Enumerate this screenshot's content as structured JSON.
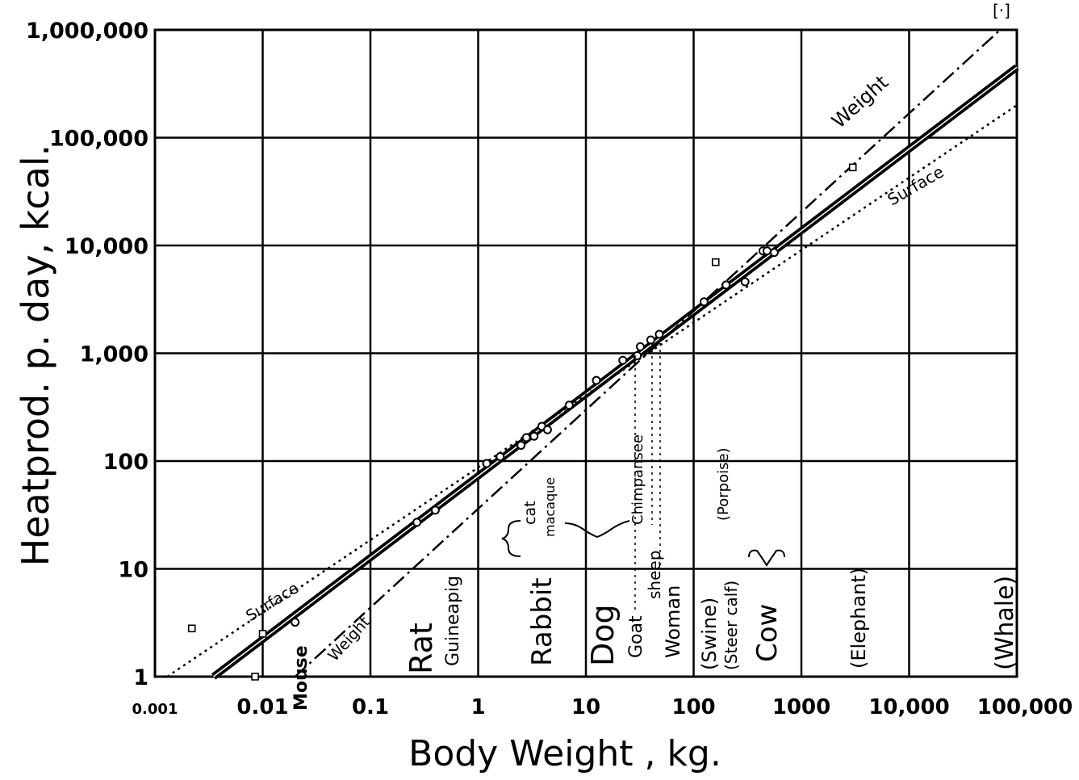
{
  "chart_data": {
    "type": "line",
    "title": "",
    "xlabel": "Body Weight , kg.",
    "ylabel": "Heatprod. p. day, kcal.",
    "x_scale": "log",
    "y_scale": "log",
    "xlim": [
      0.001,
      100000
    ],
    "ylim": [
      1,
      1000000
    ],
    "grid": true,
    "x_tick_labels": [
      "0.001",
      "0.01",
      "0.1",
      "1",
      "10",
      "100",
      "1000",
      "10,000",
      "100,000"
    ],
    "y_tick_labels": [
      "1",
      "10",
      "100",
      "1,000",
      "10,000",
      "100,000",
      "1,000,000"
    ],
    "corner_mark": "[·]",
    "series": [
      {
        "name": "",
        "style": "solid-heavy",
        "x": [
          0.0035,
          100000
        ],
        "y": [
          1,
          450000
        ]
      },
      {
        "name": "Surface",
        "style": "dotted",
        "x": [
          0.0013,
          100000
        ],
        "y": [
          1,
          200000
        ]
      },
      {
        "name": "Weight",
        "style": "dash-dot",
        "x": [
          0.02,
          70000
        ],
        "y": [
          1,
          1000000
        ]
      }
    ],
    "points": [
      {
        "x": 0.02,
        "y": 3.2
      },
      {
        "x": 0.27,
        "y": 27
      },
      {
        "x": 0.4,
        "y": 35
      },
      {
        "x": 1.2,
        "y": 95
      },
      {
        "x": 1.6,
        "y": 110
      },
      {
        "x": 2.5,
        "y": 140
      },
      {
        "x": 2.8,
        "y": 165
      },
      {
        "x": 3.3,
        "y": 170
      },
      {
        "x": 3.9,
        "y": 210
      },
      {
        "x": 4.4,
        "y": 195
      },
      {
        "x": 7.0,
        "y": 330
      },
      {
        "x": 12.5,
        "y": 560
      },
      {
        "x": 22,
        "y": 860
      },
      {
        "x": 30,
        "y": 950
      },
      {
        "x": 32,
        "y": 1150
      },
      {
        "x": 40,
        "y": 1330
      },
      {
        "x": 48,
        "y": 1500
      },
      {
        "x": 125,
        "y": 3000
      },
      {
        "x": 200,
        "y": 4300
      },
      {
        "x": 300,
        "y": 4600
      },
      {
        "x": 440,
        "y": 8900
      },
      {
        "x": 480,
        "y": 8900
      },
      {
        "x": 560,
        "y": 8600
      }
    ],
    "outliers": [
      {
        "x": 0.0022,
        "y": 2.8
      },
      {
        "x": 0.0085,
        "y": 1.0
      },
      {
        "x": 0.01,
        "y": 2.5
      },
      {
        "x": 160,
        "y": 7000
      },
      {
        "x": 3000,
        "y": 53000
      }
    ],
    "line_labels": [
      "Weight",
      "Surface",
      "Surface",
      "Weight"
    ],
    "animal_labels": [
      "Mouse",
      "Rat",
      "Guineapig",
      "Rabbit",
      "cat",
      "macaque",
      "Dog",
      "Goat",
      "sheep",
      "Chimpansee",
      "Woman",
      "(Swine)",
      "(Steer calf)",
      "(Porpoise)",
      "Cow",
      "(Elephant)",
      "(Whale)"
    ]
  }
}
